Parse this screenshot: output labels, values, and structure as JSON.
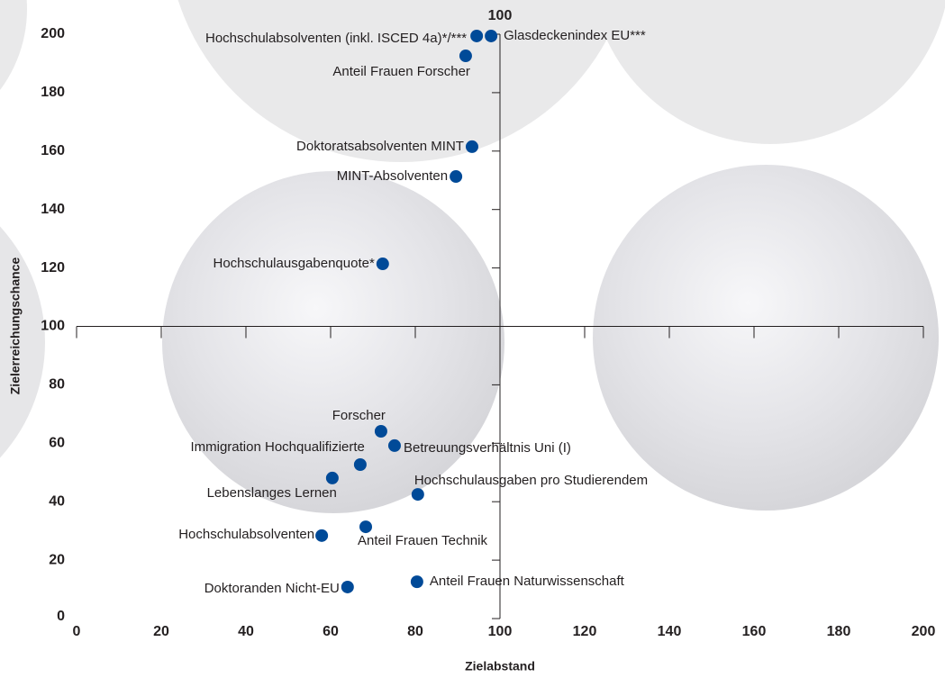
{
  "chart_data": {
    "type": "scatter",
    "x_label": "Zielabstand",
    "y_label": "Zielerreichungschance",
    "axis_top_label": "100",
    "xlim": [
      0,
      200
    ],
    "ylim": [
      0,
      200
    ],
    "cross": [
      100,
      100
    ],
    "xticks": [
      0,
      20,
      40,
      60,
      80,
      100,
      120,
      140,
      160,
      180,
      200
    ],
    "yticks": [
      0,
      20,
      40,
      60,
      80,
      100,
      120,
      140,
      160,
      180,
      200
    ],
    "color": "#004a98",
    "points": [
      {
        "label": "Hochschulabsolventen (inkl. ISCED 4a)*/***",
        "x": 94.5,
        "y": 199.4
      },
      {
        "label": "Glasdeckenindex EU***",
        "x": 97.9,
        "y": 199.4
      },
      {
        "label": "Anteil Frauen Forscher",
        "x": 91.9,
        "y": 192.6
      },
      {
        "label": "Doktoratsabsolventen MINT",
        "x": 93.4,
        "y": 161.5
      },
      {
        "label": "MINT-Absolventen",
        "x": 89.6,
        "y": 151.3
      },
      {
        "label": "Hochschulausgabenquote*",
        "x": 72.3,
        "y": 121.4
      },
      {
        "label": "Forscher",
        "x": 71.9,
        "y": 64.1
      },
      {
        "label": "Betreuungsverhältnis Uni (I)",
        "x": 75.1,
        "y": 59.2
      },
      {
        "label": "Immigration Hochqualifizierte",
        "x": 67.0,
        "y": 52.7
      },
      {
        "label": "Lebenslanges Lernen",
        "x": 60.4,
        "y": 48.1
      },
      {
        "label": "Hochschulausgaben pro Studierendem",
        "x": 80.6,
        "y": 42.5
      },
      {
        "label": "Anteil Frauen Technik",
        "x": 68.3,
        "y": 31.4
      },
      {
        "label": "Hochschulabsolventen",
        "x": 57.9,
        "y": 28.4
      },
      {
        "label": "Anteil Frauen Naturwissenschaft",
        "x": 80.4,
        "y": 12.6
      },
      {
        "label": "Doktoranden Nicht-EU",
        "x": 64.0,
        "y": 10.8
      }
    ]
  }
}
